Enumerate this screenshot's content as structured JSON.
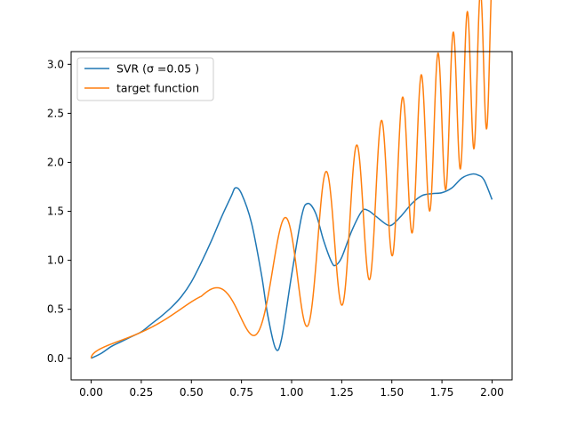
{
  "chart_data": {
    "type": "line",
    "title": "",
    "xlabel": "",
    "ylabel": "",
    "xlim": [
      -0.1,
      2.1
    ],
    "ylim": [
      -0.22,
      3.13
    ],
    "xticks": [
      0.0,
      0.25,
      0.5,
      0.75,
      1.0,
      1.25,
      1.5,
      1.75,
      2.0
    ],
    "xtick_labels": [
      "0.00",
      "0.25",
      "0.50",
      "0.75",
      "1.00",
      "1.25",
      "1.50",
      "1.75",
      "2.00"
    ],
    "yticks": [
      0.0,
      0.5,
      1.0,
      1.5,
      2.0,
      2.5,
      3.0
    ],
    "ytick_labels": [
      "0.0",
      "0.5",
      "1.0",
      "1.5",
      "2.0",
      "2.5",
      "3.0"
    ],
    "grid": false,
    "legend_position": "top-left",
    "series": [
      {
        "name": "SVR (σ =0.05 )",
        "color": "#1f77b4",
        "x": [
          0.0,
          0.05,
          0.1,
          0.15,
          0.2,
          0.25,
          0.3,
          0.35,
          0.4,
          0.45,
          0.5,
          0.55,
          0.6,
          0.65,
          0.7,
          0.72,
          0.75,
          0.8,
          0.85,
          0.88,
          0.92,
          0.95,
          1.0,
          1.05,
          1.08,
          1.12,
          1.16,
          1.2,
          1.22,
          1.25,
          1.3,
          1.35,
          1.38,
          1.42,
          1.47,
          1.5,
          1.55,
          1.6,
          1.65,
          1.7,
          1.75,
          1.8,
          1.85,
          1.9,
          1.93,
          1.96,
          2.0
        ],
        "y": [
          0.0,
          0.05,
          0.12,
          0.17,
          0.22,
          0.27,
          0.35,
          0.43,
          0.52,
          0.63,
          0.78,
          0.98,
          1.2,
          1.44,
          1.66,
          1.74,
          1.68,
          1.38,
          0.85,
          0.45,
          0.1,
          0.2,
          0.85,
          1.45,
          1.58,
          1.48,
          1.2,
          0.98,
          0.95,
          1.03,
          1.3,
          1.5,
          1.51,
          1.45,
          1.37,
          1.36,
          1.46,
          1.58,
          1.66,
          1.68,
          1.69,
          1.74,
          1.84,
          1.88,
          1.87,
          1.82,
          1.62
        ]
      },
      {
        "name": "target function",
        "color": "#ff7f0e",
        "function": "sqrt(x)*(1+x^2)*0.5 + sin(x^3 * 2*pi*1.4)*(0.2+0.35*(x>0.6?1:0))",
        "x_range": [
          0.0,
          2.0
        ]
      }
    ]
  }
}
